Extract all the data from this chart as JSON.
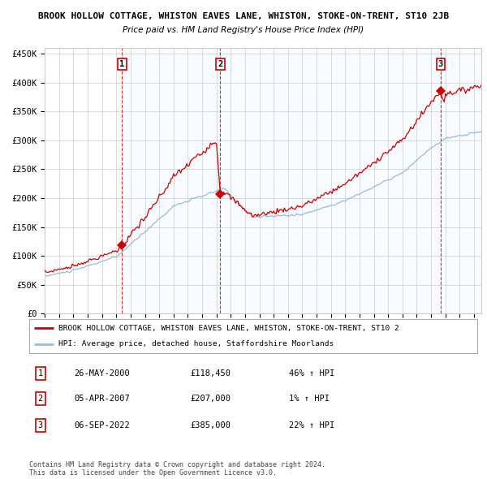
{
  "title": "BROOK HOLLOW COTTAGE, WHISTON EAVES LANE, WHISTON, STOKE-ON-TRENT, ST10 2JB",
  "subtitle": "Price paid vs. HM Land Registry's House Price Index (HPI)",
  "ylabel_ticks": [
    "£0",
    "£50K",
    "£100K",
    "£150K",
    "£200K",
    "£250K",
    "£300K",
    "£350K",
    "£400K",
    "£450K"
  ],
  "ytick_values": [
    0,
    50000,
    100000,
    150000,
    200000,
    250000,
    300000,
    350000,
    400000,
    450000
  ],
  "ylim": [
    0,
    460000
  ],
  "xlim_start": 1995.0,
  "xlim_end": 2025.5,
  "sales": [
    {
      "date": 2000.4,
      "price": 118450,
      "label": "1"
    },
    {
      "date": 2007.27,
      "price": 207000,
      "label": "2"
    },
    {
      "date": 2022.67,
      "price": 385000,
      "label": "3"
    }
  ],
  "red_line_color": "#cc0000",
  "blue_line_color": "#99bbdd",
  "shade_color": "#ddeeff",
  "grid_color": "#cccccc",
  "background_color": "#ffffff",
  "legend_text_red": "BROOK HOLLOW COTTAGE, WHISTON EAVES LANE, WHISTON, STOKE-ON-TRENT, ST10 2",
  "legend_text_blue": "HPI: Average price, detached house, Staffordshire Moorlands",
  "table_rows": [
    {
      "num": "1",
      "date": "26-MAY-2000",
      "price": "£118,450",
      "pct": "46% ↑ HPI"
    },
    {
      "num": "2",
      "date": "05-APR-2007",
      "price": "£207,000",
      "pct": "1% ↑ HPI"
    },
    {
      "num": "3",
      "date": "06-SEP-2022",
      "price": "£385,000",
      "pct": "22% ↑ HPI"
    }
  ],
  "footer": "Contains HM Land Registry data © Crown copyright and database right 2024.\nThis data is licensed under the Open Government Licence v3.0."
}
